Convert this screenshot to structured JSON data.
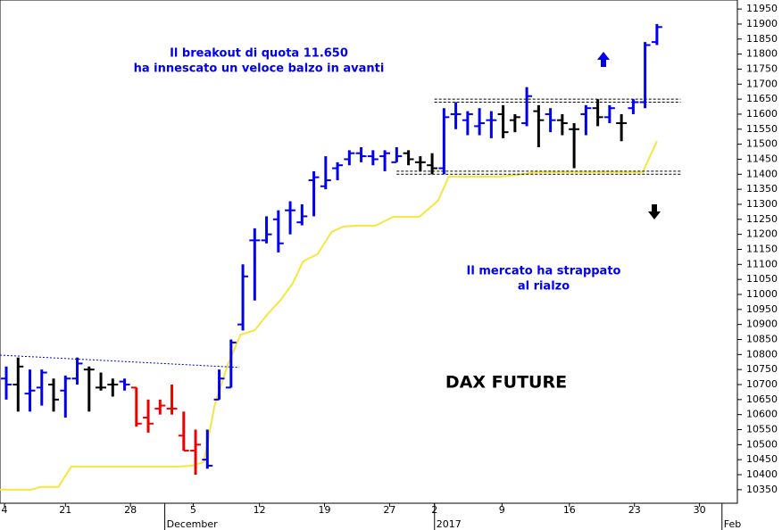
{
  "chart_data": {
    "type": "ohlc",
    "title": "DAX FUTURE",
    "annotations": [
      {
        "lines": [
          "Il breakout di quota 11.650",
          "ha innescato un veloce balzo in avanti"
        ],
        "color": "#0000ee"
      },
      {
        "lines": [
          "Il mercato ha strappato",
          "al rialzo"
        ],
        "color": "#0000ee"
      }
    ],
    "open": [
      10720,
      10700,
      10670,
      10690,
      10700,
      10680,
      10720,
      10750,
      10690,
      10700,
      10710,
      10690,
      10590,
      10620,
      10620,
      10530,
      10480,
      10450,
      10650,
      10690,
      10900,
      11180,
      11180,
      11250,
      11280,
      11240,
      11380,
      11360,
      11420,
      11450,
      11470,
      11460,
      11460,
      11440,
      11470,
      11440,
      11430,
      11420,
      11600,
      11580,
      11560,
      11580,
      11600,
      11580,
      11570,
      11610,
      11600,
      11580,
      11550,
      11600,
      11620,
      11590,
      11570,
      11620,
      11640,
      11840
    ],
    "high": [
      10760,
      10790,
      10750,
      10750,
      10720,
      10730,
      10790,
      10760,
      10740,
      10720,
      10720,
      10690,
      10650,
      10650,
      10700,
      10610,
      10550,
      10550,
      10750,
      10850,
      11100,
      11220,
      11260,
      11280,
      11310,
      11300,
      11410,
      11460,
      11440,
      11480,
      11490,
      11480,
      11480,
      11490,
      11480,
      11460,
      11470,
      11620,
      11640,
      11610,
      11620,
      11610,
      11630,
      11600,
      11690,
      11630,
      11620,
      11600,
      11570,
      11630,
      11650,
      11630,
      11600,
      11650,
      11840,
      11900
    ],
    "low": [
      10650,
      10610,
      10610,
      10630,
      10610,
      10590,
      10700,
      10610,
      10680,
      10660,
      10680,
      10560,
      10540,
      10600,
      10600,
      10480,
      10400,
      10420,
      10650,
      10690,
      10880,
      10980,
      11170,
      11140,
      11200,
      11230,
      11260,
      11350,
      11380,
      11430,
      11440,
      11430,
      11410,
      11440,
      11430,
      11410,
      11400,
      11400,
      11550,
      11530,
      11530,
      11520,
      11520,
      11540,
      11560,
      11490,
      11540,
      11530,
      11420,
      11530,
      11560,
      11570,
      11510,
      11600,
      11620,
      11830
    ],
    "close": [
      10700,
      10760,
      10680,
      10740,
      10650,
      10720,
      10770,
      10750,
      10690,
      10700,
      10700,
      10570,
      10570,
      10630,
      10620,
      10480,
      10500,
      10430,
      10720,
      10840,
      11060,
      11180,
      11200,
      11170,
      11280,
      11260,
      11390,
      11380,
      11430,
      11470,
      11460,
      11450,
      11470,
      11460,
      11450,
      11440,
      11420,
      11590,
      11600,
      11600,
      11570,
      11580,
      11540,
      11590,
      11660,
      11580,
      11580,
      11570,
      11550,
      11620,
      11590,
      11620,
      11570,
      11640,
      11830,
      11890
    ],
    "colors": [
      "#0000ee",
      "#000000",
      "#0000ee",
      "#0000ee",
      "#000000",
      "#0000ee",
      "#0000ee",
      "#000000",
      "#000000",
      "#000000",
      "#0000ee",
      "#ee0000",
      "#ee0000",
      "#ee0000",
      "#ee0000",
      "#ee0000",
      "#ee0000",
      "#0000ee",
      "#0000ee",
      "#0000ee",
      "#0000ee",
      "#0000ee",
      "#0000ee",
      "#0000ee",
      "#0000ee",
      "#0000ee",
      "#0000ee",
      "#0000ee",
      "#0000ee",
      "#0000ee",
      "#0000ee",
      "#0000ee",
      "#0000ee",
      "#0000ee",
      "#000000",
      "#000000",
      "#000000",
      "#0000ee",
      "#0000ee",
      "#0000ee",
      "#0000ee",
      "#0000ee",
      "#000000",
      "#000000",
      "#0000ee",
      "#000000",
      "#0000ee",
      "#000000",
      "#000000",
      "#0000ee",
      "#000000",
      "#0000ee",
      "#000000",
      "#0000ee",
      "#0000ee",
      "#0000ee"
    ],
    "lines": [
      {
        "color": "#f5e640",
        "dash": "none",
        "width": 2,
        "x": [
          -0.53,
          2.1,
          2.9,
          4.4,
          5.5,
          14.6,
          15.7,
          16.7,
          17.6,
          18.7,
          19.8,
          21.0,
          22.1,
          23.2,
          24.2,
          25.1,
          26.3,
          27.5,
          28.5,
          29.7,
          31.2,
          32.7,
          34.9,
          36.5,
          37.4,
          41.7,
          43.2,
          44.8,
          53.8,
          55.0
        ],
        "values": [
          10350,
          10350,
          10359,
          10359,
          10427,
          10427,
          10430,
          10442,
          10629,
          10763,
          10866,
          10881,
          10935,
          10982,
          11036,
          11110,
          11134,
          11208,
          11226,
          11229,
          11229,
          11258,
          11258,
          11312,
          11392,
          11392,
          11398,
          11407,
          11407,
          11510
        ]
      },
      {
        "color": "#0000cc",
        "dash": "2 2",
        "width": 1,
        "x": [
          -0.53,
          19.7
        ],
        "values": [
          10798,
          10757
        ]
      },
      {
        "color": "#000000",
        "dash": "3 2",
        "width": 1,
        "x": [
          36.2,
          57
        ],
        "values": [
          11650,
          11650
        ]
      },
      {
        "color": "#000000",
        "dash": "3 2",
        "width": 1,
        "x": [
          36.2,
          57
        ],
        "values": [
          11640,
          11640
        ]
      },
      {
        "color": "#000000",
        "dash": "3 2",
        "width": 1,
        "x": [
          33.0,
          57
        ],
        "values": [
          11410,
          11410
        ]
      },
      {
        "color": "#000000",
        "dash": "3 2",
        "width": 1,
        "x": [
          33.0,
          57
        ],
        "values": [
          11400,
          11400
        ]
      }
    ],
    "xlim": [
      -0.53,
      61.8
    ],
    "xticks": [
      {
        "value": -0.15,
        "label": "4"
      },
      {
        "value": 5.0,
        "label": "21"
      },
      {
        "value": 10.5,
        "label": "28"
      },
      {
        "value": 15.8,
        "label": "5"
      },
      {
        "value": 21.4,
        "label": "12"
      },
      {
        "value": 26.9,
        "label": "19"
      },
      {
        "value": 32.4,
        "label": "27"
      },
      {
        "value": 36.2,
        "label": "2"
      },
      {
        "value": 41.9,
        "label": "9"
      },
      {
        "value": 47.6,
        "label": "16"
      },
      {
        "value": 53.1,
        "label": "23"
      },
      {
        "value": 58.6,
        "label": "30"
      }
    ],
    "xticks_months": [
      {
        "value": 13.4,
        "label": "December"
      },
      {
        "value": 36.2,
        "label": "2017"
      },
      {
        "value": 60.5,
        "label": "Feb"
      }
    ],
    "ylim": [
      10305,
      11980
    ],
    "yticks": [
      10350,
      10400,
      10450,
      10500,
      10550,
      10600,
      10650,
      10700,
      10750,
      10800,
      10850,
      10900,
      10950,
      11000,
      11050,
      11100,
      11150,
      11200,
      11250,
      11300,
      11350,
      11400,
      11450,
      11500,
      11550,
      11600,
      11650,
      11700,
      11750,
      11800,
      11850,
      11900,
      11950
    ]
  }
}
